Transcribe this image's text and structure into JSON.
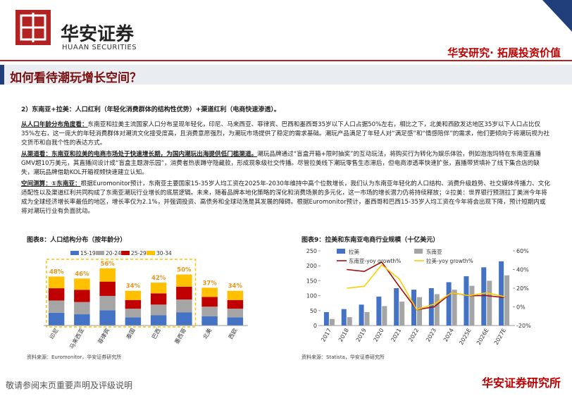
{
  "header": {
    "logo_cn": "华安证券",
    "logo_en": "HUAAN SECURITIES",
    "slogan": "华安研究· 拓展投资价值"
  },
  "title": "如何看待潮玩增长空间？",
  "body": {
    "heading": "2）东南亚+拉美：人口红利（年轻化消费群体的结构性优势）+渠道红利（电商快速渗透）。",
    "paragraphs": [
      {
        "lead": "从人口年龄分布角度看：",
        "text": "东南亚和拉美主流国家人口分布呈现年轻化，印尼、马来西亚、菲律宾、巴西和墨西哥35岁以下人口占据50%左右，相比之下，北美和西欧发达地区35岁以下人口占比仅35%左右，这一庞大的年轻消费群体对潮流文化接受度高，且消费意愿强烈，为潮玩市场提供了稳定的需求基础。潮玩产品满足了年轻人对“满足感”和“情感陪伴”的需求，他们更倾向于将潮玩视为社交货币和自我个性的表达方式。"
      },
      {
        "lead": "从渠道看：东南亚和拉美的电商市场处于快速增长期，为国内潮玩出海提供低门槛渠道。",
        "text": "潮玩品牌通过“盲盒开箱+限时抽奖”的互动玩法，将购买行为转化为娱乐体验，例如泡泡玛特在东南亚直播GMV超10万美元，其直播间设计成“盲盒主题游乐园”，消费者热衷蹲守隐藏款，形成现象级社交传播。尽管拉美线下潮玩零售生态滞后，但电商渗透率快速扩张，直播带货填补了线下集合店的缺失，潮玩品牌借助KOL开箱视频快速建立认知。"
      },
      {
        "lead": "空间测算：①东南亚：",
        "text": "根据Euromonitor预计，东南亚主要国家15-35岁人均工资在2025年-2030年维持中高个位数增长，我们认为东南亚年轻化的人口结构、消费升级趋势、社交媒体传播力、文化适配性以及渠道红利共同构成了东南亚潮玩行业增长的底层逻辑。未来，随着品牌本地化策略的深化和消费场景的多元化，这一市场的增长潜力仍将持续释放；②拉美：世界银行预测拉丁美洲今年将成为全球经济增长率最低的地区，增长率仅为2.1%，并强调投资、高债务和全球动荡是其发展的障碍。根据Euromonitor预计，墨西哥和巴西15-35岁人均工资在今年将会出现下降，预计短期内或将对潮玩行业有负面扰动。"
      }
    ]
  },
  "chart_data": [
    {
      "type": "stacked_bar",
      "title": "图表8：人口结构分布（按年龄分）",
      "categories": [
        "印尼",
        "马来西亚",
        "菲律宾",
        "泰国",
        "巴西",
        "墨西哥",
        "北美",
        "西欧"
      ],
      "series": [
        {
          "name": "15-19",
          "color": "#4472c4",
          "values": [
            12.5,
            11,
            15,
            8,
            10,
            13,
            9,
            8
          ]
        },
        {
          "name": "20-24",
          "color": "#a5a5a5",
          "values": [
            12,
            12,
            14,
            8.5,
            10.5,
            12.5,
            9.5,
            8.5
          ]
        },
        {
          "name": "25-29",
          "color": "#c00000",
          "values": [
            12,
            12,
            14,
            8.5,
            11,
            12.5,
            9.5,
            8.5
          ]
        },
        {
          "name": "30-34",
          "color": "#ffc000",
          "values": [
            11.5,
            11,
            13,
            9,
            10.5,
            12,
            9,
            9
          ]
        }
      ],
      "totals": [
        48,
        46,
        56,
        34,
        42,
        50,
        37,
        34
      ],
      "total_labels": [
        "48%",
        "46%",
        "56%",
        "34%",
        "42%",
        "50%",
        "37%",
        "34%"
      ],
      "source": "资料来源：Euromonitor，华安证券研究所"
    },
    {
      "type": "bar_line",
      "title": "图表9：拉美和东南亚电商行业规模（十亿美元）",
      "categories": [
        "2017",
        "2018",
        "2019",
        "2020",
        "2021",
        "2022",
        "2023",
        "2024",
        "2025E",
        "2026E",
        "2027E"
      ],
      "series": [
        {
          "name": "拉美",
          "color": "#4472c4",
          "kind": "bar",
          "values": [
            45,
            55,
            70,
            97,
            125,
            120,
            125,
            145,
            165,
            195,
            215
          ]
        },
        {
          "name": "东南亚",
          "color": "#a5a5a5",
          "kind": "bar",
          "values": [
            22,
            28,
            45,
            65,
            80,
            95,
            105,
            120,
            133,
            150,
            168
          ]
        },
        {
          "name": "东南亚-yoy growth%",
          "color": "#a01010",
          "kind": "line",
          "axis": "y2",
          "values": [
            null,
            40,
            38,
            48,
            22,
            -3,
            0,
            15,
            12,
            12,
            10
          ]
        },
        {
          "name": "拉美-yoy growth%",
          "color": "#ffcc00",
          "kind": "line",
          "axis": "y2",
          "values": [
            null,
            20,
            22,
            45,
            30,
            -3,
            3,
            15,
            12,
            15,
            11
          ]
        }
      ],
      "ylim": [
        0,
        250
      ],
      "yticks": [
        0,
        50,
        100,
        150,
        200,
        250
      ],
      "y2lim": [
        -20,
        60
      ],
      "y2ticks": [
        {
          "value": -20,
          "label": "-20%"
        },
        {
          "value": 0,
          "label": "0%"
        },
        {
          "value": 20,
          "label": "20%"
        },
        {
          "value": 40,
          "label": "40%"
        },
        {
          "value": 60,
          "label": "60%"
        }
      ],
      "source": "资料来源：Statista，华安证券研究所"
    }
  ],
  "footer": {
    "disclaimer": "敬请参阅末页重要声明及评级说明",
    "brand": "华安证券研究所"
  }
}
